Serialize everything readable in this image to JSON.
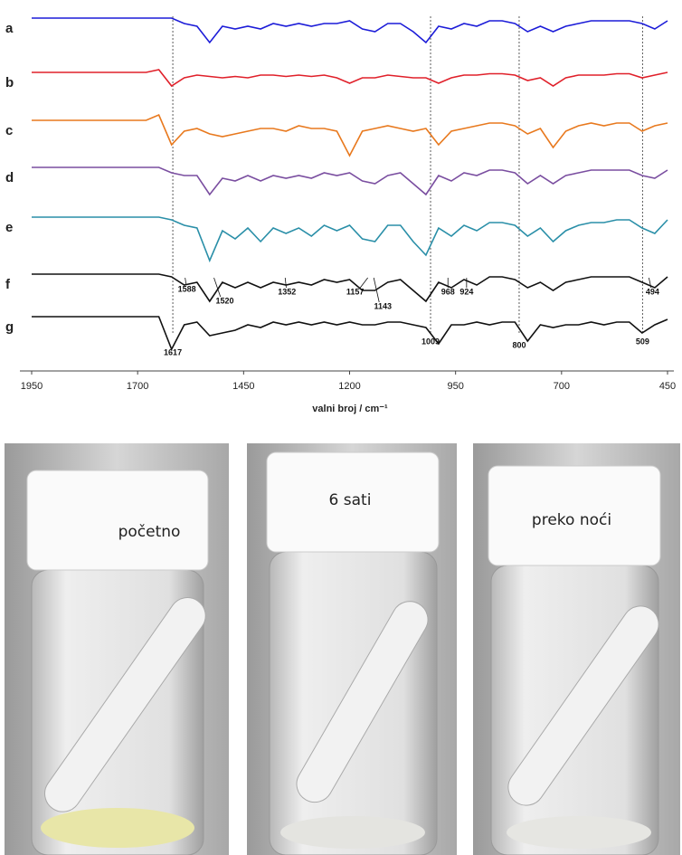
{
  "chart_data": {
    "type": "line",
    "xlabel": "valni broj / cm⁻¹",
    "xlim": [
      1950,
      450
    ],
    "xticks": [
      1950,
      1700,
      1450,
      1200,
      950,
      700,
      450
    ],
    "x": [
      1950,
      1920,
      1890,
      1860,
      1830,
      1800,
      1770,
      1740,
      1710,
      1680,
      1650,
      1620,
      1590,
      1560,
      1530,
      1500,
      1470,
      1440,
      1410,
      1380,
      1350,
      1320,
      1290,
      1260,
      1230,
      1200,
      1170,
      1140,
      1110,
      1080,
      1050,
      1020,
      990,
      960,
      930,
      900,
      870,
      840,
      810,
      780,
      750,
      720,
      690,
      660,
      630,
      600,
      570,
      540,
      510,
      480,
      450
    ],
    "series": [
      {
        "name": "a",
        "color": "#1c1cd8",
        "values": [
          0,
          0,
          0,
          0,
          0,
          0,
          0,
          0,
          0,
          0,
          0,
          0,
          -0.2,
          -0.3,
          -0.9,
          -0.3,
          -0.4,
          -0.3,
          -0.4,
          -0.2,
          -0.3,
          -0.2,
          -0.3,
          -0.2,
          -0.2,
          -0.1,
          -0.4,
          -0.5,
          -0.2,
          -0.2,
          -0.5,
          -0.9,
          -0.3,
          -0.4,
          -0.2,
          -0.3,
          -0.1,
          -0.1,
          -0.2,
          -0.5,
          -0.3,
          -0.5,
          -0.3,
          -0.2,
          -0.1,
          -0.1,
          -0.1,
          -0.1,
          -0.2,
          -0.4,
          -0.1
        ]
      },
      {
        "name": "b",
        "color": "#e0202a",
        "values": [
          0,
          0,
          0,
          0,
          0,
          0,
          0,
          0,
          0,
          0,
          0.1,
          -0.5,
          -0.2,
          -0.1,
          -0.15,
          -0.2,
          -0.15,
          -0.2,
          -0.1,
          -0.1,
          -0.15,
          -0.1,
          -0.15,
          -0.1,
          -0.2,
          -0.4,
          -0.2,
          -0.2,
          -0.1,
          -0.15,
          -0.2,
          -0.2,
          -0.4,
          -0.2,
          -0.1,
          -0.1,
          -0.05,
          -0.05,
          -0.1,
          -0.3,
          -0.2,
          -0.5,
          -0.2,
          -0.1,
          -0.1,
          -0.1,
          -0.05,
          -0.05,
          -0.2,
          -0.1,
          0
        ]
      },
      {
        "name": "c",
        "color": "#e8791e",
        "values": [
          0,
          0,
          0,
          0,
          0,
          0,
          0,
          0,
          0,
          0,
          0.2,
          -0.9,
          -0.4,
          -0.3,
          -0.5,
          -0.6,
          -0.5,
          -0.4,
          -0.3,
          -0.3,
          -0.4,
          -0.2,
          -0.3,
          -0.3,
          -0.4,
          -1.3,
          -0.4,
          -0.3,
          -0.2,
          -0.3,
          -0.4,
          -0.3,
          -0.9,
          -0.4,
          -0.3,
          -0.2,
          -0.1,
          -0.1,
          -0.2,
          -0.5,
          -0.3,
          -1.0,
          -0.4,
          -0.2,
          -0.1,
          -0.2,
          -0.1,
          -0.1,
          -0.4,
          -0.2,
          -0.1
        ]
      },
      {
        "name": "d",
        "color": "#7a4ea0",
        "values": [
          0,
          0,
          0,
          0,
          0,
          0,
          0,
          0,
          0,
          0,
          0,
          -0.2,
          -0.3,
          -0.3,
          -1.0,
          -0.4,
          -0.5,
          -0.3,
          -0.5,
          -0.3,
          -0.4,
          -0.3,
          -0.4,
          -0.2,
          -0.3,
          -0.2,
          -0.5,
          -0.6,
          -0.3,
          -0.2,
          -0.6,
          -1.0,
          -0.3,
          -0.5,
          -0.2,
          -0.3,
          -0.1,
          -0.1,
          -0.2,
          -0.6,
          -0.3,
          -0.6,
          -0.3,
          -0.2,
          -0.1,
          -0.1,
          -0.1,
          -0.1,
          -0.3,
          -0.4,
          -0.1
        ]
      },
      {
        "name": "e",
        "color": "#2a8fa8",
        "values": [
          0,
          0,
          0,
          0,
          0,
          0,
          0,
          0,
          0,
          0,
          0,
          -0.1,
          -0.3,
          -0.4,
          -1.6,
          -0.5,
          -0.8,
          -0.4,
          -0.9,
          -0.4,
          -0.6,
          -0.4,
          -0.7,
          -0.3,
          -0.5,
          -0.3,
          -0.8,
          -0.9,
          -0.3,
          -0.3,
          -0.9,
          -1.4,
          -0.4,
          -0.7,
          -0.3,
          -0.5,
          -0.2,
          -0.2,
          -0.3,
          -0.7,
          -0.4,
          -0.9,
          -0.5,
          -0.3,
          -0.2,
          -0.2,
          -0.1,
          -0.1,
          -0.4,
          -0.6,
          -0.1
        ]
      },
      {
        "name": "f",
        "color": "#111111",
        "values": [
          0,
          0,
          0,
          0,
          0,
          0,
          0,
          0,
          0,
          0,
          0,
          -0.1,
          -0.4,
          -0.3,
          -1.0,
          -0.3,
          -0.5,
          -0.3,
          -0.5,
          -0.3,
          -0.4,
          -0.3,
          -0.4,
          -0.2,
          -0.3,
          -0.2,
          -0.6,
          -0.6,
          -0.3,
          -0.2,
          -0.6,
          -1.0,
          -0.3,
          -0.5,
          -0.2,
          -0.4,
          -0.1,
          -0.1,
          -0.2,
          -0.5,
          -0.3,
          -0.6,
          -0.3,
          -0.2,
          -0.1,
          -0.1,
          -0.1,
          -0.1,
          -0.3,
          -0.5,
          -0.1
        ]
      },
      {
        "name": "g",
        "color": "#111111",
        "values": [
          0,
          0,
          0,
          0,
          0,
          0,
          0,
          0,
          0,
          0,
          0,
          -1.2,
          -0.3,
          -0.2,
          -0.7,
          -0.6,
          -0.5,
          -0.3,
          -0.4,
          -0.2,
          -0.3,
          -0.2,
          -0.3,
          -0.2,
          -0.3,
          -0.2,
          -0.3,
          -0.3,
          -0.2,
          -0.2,
          -0.3,
          -0.4,
          -1.0,
          -0.3,
          -0.3,
          -0.2,
          -0.3,
          -0.2,
          -0.2,
          -0.9,
          -0.3,
          -0.4,
          -0.3,
          -0.3,
          -0.2,
          -0.3,
          -0.2,
          -0.2,
          -0.6,
          -0.3,
          -0.1
        ]
      }
    ],
    "annotations": [
      {
        "series": "f",
        "x": 1588
      },
      {
        "series": "f",
        "x": 1520
      },
      {
        "series": "f",
        "x": 1352
      },
      {
        "series": "f",
        "x": 1157
      },
      {
        "series": "f",
        "x": 1143
      },
      {
        "series": "f",
        "x": 968
      },
      {
        "series": "f",
        "x": 924
      },
      {
        "series": "f",
        "x": 494
      },
      {
        "series": "g",
        "x": 1617,
        "dashed": true
      },
      {
        "series": "g",
        "x": 1009,
        "dashed": true
      },
      {
        "series": "g",
        "x": 800,
        "dashed": true
      },
      {
        "series": "g",
        "x": 509,
        "dashed": true
      }
    ]
  },
  "photos": [
    {
      "caption": "početno"
    },
    {
      "caption": "6 sati"
    },
    {
      "caption": "preko noći"
    }
  ]
}
